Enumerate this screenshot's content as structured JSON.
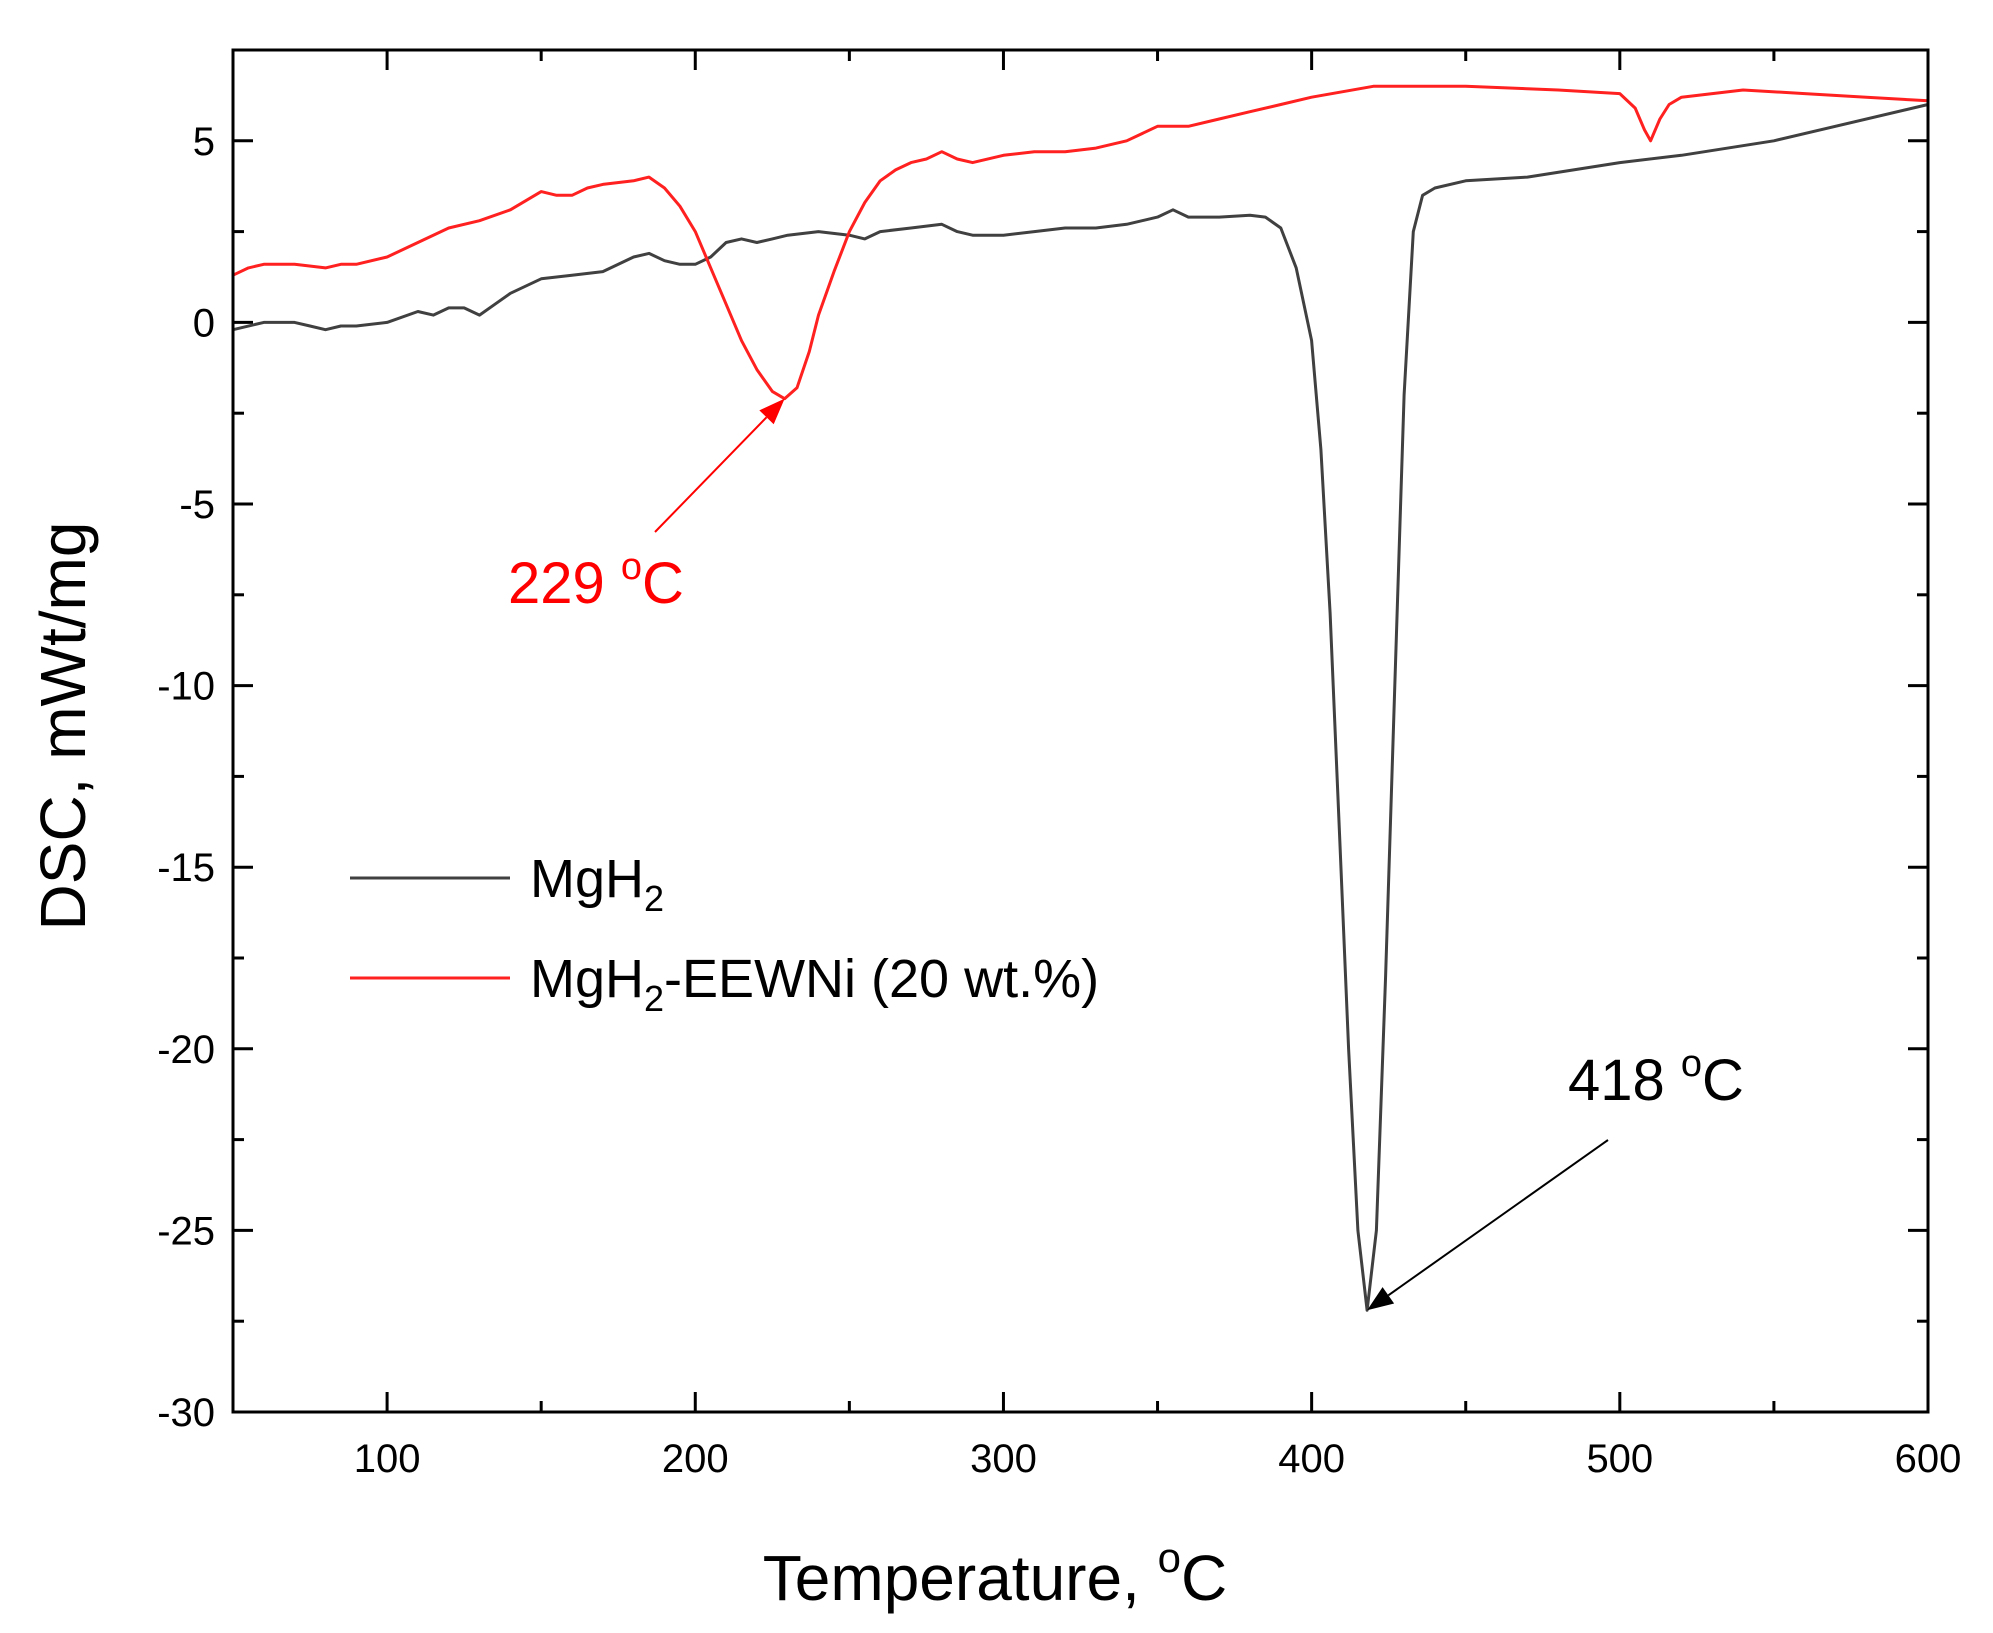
{
  "chart_data": {
    "type": "line",
    "xlabel": "Temperature, ",
    "xlabel_unit_sup": "o",
    "xlabel_unit": "C",
    "ylabel": "DSC, mWt/mg",
    "xlim": [
      50,
      600
    ],
    "ylim": [
      -30,
      7.5
    ],
    "xticks": [
      100,
      200,
      300,
      400,
      500,
      600
    ],
    "xtick_labels": [
      "100",
      "200",
      "300",
      "400",
      "500",
      "600"
    ],
    "xminor": [
      150,
      250,
      350,
      450,
      550
    ],
    "yticks": [
      5,
      0,
      -5,
      -10,
      -15,
      -20,
      -25,
      -30
    ],
    "ytick_labels": [
      "5",
      "0",
      "-5",
      "-10",
      "-15",
      "-20",
      "-25",
      "-30"
    ],
    "yminor": [
      2.5,
      -2.5,
      -7.5,
      -12.5,
      -17.5,
      -22.5,
      -27.5
    ],
    "legend_position": "middle-left",
    "series": [
      {
        "name": "MgH2",
        "label_main": "MgH",
        "label_sub": "2",
        "label_rest": "",
        "color": "#404040",
        "x": [
          50,
          60,
          70,
          75,
          80,
          85,
          90,
          100,
          110,
          115,
          120,
          125,
          130,
          135,
          140,
          150,
          160,
          170,
          180,
          185,
          190,
          195,
          200,
          205,
          210,
          215,
          220,
          225,
          230,
          240,
          250,
          255,
          260,
          270,
          280,
          285,
          290,
          300,
          310,
          320,
          330,
          340,
          350,
          355,
          360,
          370,
          380,
          385,
          390,
          395,
          400,
          403,
          406,
          409,
          412,
          415,
          418,
          421,
          424,
          427,
          430,
          433,
          436,
          440,
          450,
          470,
          500,
          520,
          550,
          600
        ],
        "values": [
          -0.2,
          0.0,
          0.0,
          -0.1,
          -0.2,
          -0.1,
          -0.1,
          0.0,
          0.3,
          0.2,
          0.4,
          0.4,
          0.2,
          0.5,
          0.8,
          1.2,
          1.3,
          1.4,
          1.8,
          1.9,
          1.7,
          1.6,
          1.6,
          1.8,
          2.2,
          2.3,
          2.2,
          2.3,
          2.4,
          2.5,
          2.4,
          2.3,
          2.5,
          2.6,
          2.7,
          2.5,
          2.4,
          2.4,
          2.5,
          2.6,
          2.6,
          2.7,
          2.9,
          3.1,
          2.9,
          2.9,
          2.95,
          2.9,
          2.6,
          1.5,
          -0.5,
          -3.5,
          -8.0,
          -14.0,
          -20.0,
          -25.0,
          -27.2,
          -25.0,
          -18.0,
          -10.0,
          -2.0,
          2.5,
          3.5,
          3.7,
          3.9,
          4.0,
          4.4,
          4.6,
          5.0,
          6.0
        ]
      },
      {
        "name": "MgH2-EEWNi (20 wt.%)",
        "label_main": "MgH",
        "label_sub": "2",
        "label_rest": "-EEWNi (20 wt.%)",
        "color": "#ff2020",
        "x": [
          50,
          55,
          60,
          70,
          80,
          85,
          90,
          100,
          110,
          120,
          130,
          140,
          150,
          155,
          160,
          165,
          170,
          180,
          185,
          190,
          195,
          200,
          205,
          210,
          215,
          220,
          225,
          229,
          233,
          237,
          240,
          245,
          250,
          255,
          260,
          265,
          270,
          275,
          280,
          285,
          290,
          300,
          310,
          320,
          330,
          340,
          350,
          360,
          370,
          380,
          390,
          400,
          420,
          450,
          480,
          500,
          505,
          508,
          510,
          513,
          516,
          520,
          540,
          560,
          580,
          600
        ],
        "values": [
          1.3,
          1.5,
          1.6,
          1.6,
          1.5,
          1.6,
          1.6,
          1.8,
          2.2,
          2.6,
          2.8,
          3.1,
          3.6,
          3.5,
          3.5,
          3.7,
          3.8,
          3.9,
          4.0,
          3.7,
          3.2,
          2.5,
          1.5,
          0.5,
          -0.5,
          -1.3,
          -1.9,
          -2.1,
          -1.8,
          -0.8,
          0.2,
          1.4,
          2.5,
          3.3,
          3.9,
          4.2,
          4.4,
          4.5,
          4.7,
          4.5,
          4.4,
          4.6,
          4.7,
          4.7,
          4.8,
          5.0,
          5.4,
          5.4,
          5.6,
          5.8,
          6.0,
          6.2,
          6.5,
          6.5,
          6.4,
          6.3,
          5.9,
          5.3,
          5.0,
          5.6,
          6.0,
          6.2,
          6.4,
          6.3,
          6.2,
          6.1
        ]
      }
    ],
    "annotations": [
      {
        "text": "229 ",
        "sup": "o",
        "unit": "C",
        "color": "#ff0000",
        "point_x": 229,
        "point_y": -2.1
      },
      {
        "text": "418 ",
        "sup": "o",
        "unit": "C",
        "color": "#000000",
        "point_x": 418,
        "point_y": -27.2
      }
    ]
  }
}
